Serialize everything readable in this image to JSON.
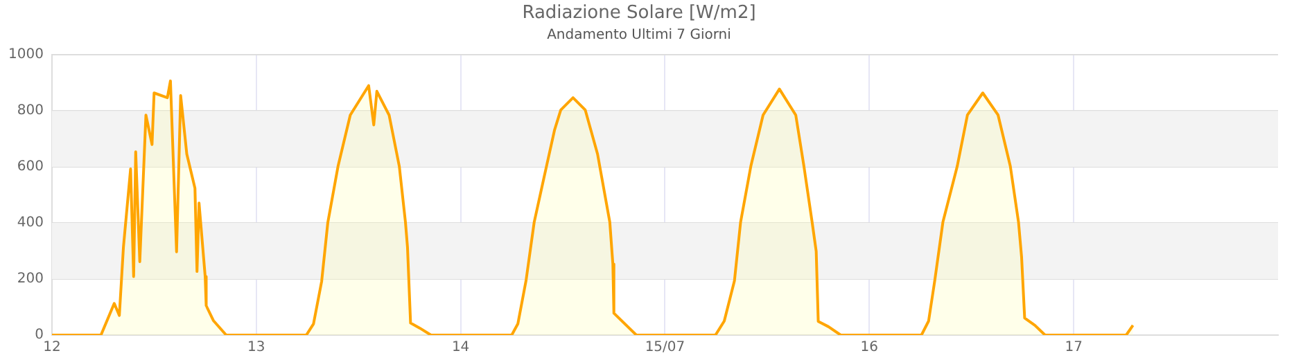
{
  "chart_data": {
    "type": "area",
    "title": "Radiazione Solare [W/m2]",
    "subtitle": "Andamento Ultimi 7 Giorni",
    "series": [
      {
        "color": "#ffa500",
        "x": [
          12,
          12.24,
          12.305,
          12.33,
          12.35,
          12.385,
          12.4,
          12.41,
          12.43,
          12.46,
          12.49,
          12.5,
          12.565,
          12.58,
          12.61,
          12.63,
          12.66,
          12.7,
          12.71,
          12.72,
          12.75,
          12.755,
          12.79,
          12.853,
          13.245,
          13.28,
          13.32,
          13.35,
          13.4,
          13.46,
          13.55,
          13.575,
          13.59,
          13.65,
          13.7,
          13.73,
          13.74,
          13.755,
          13.8,
          13.855,
          14.25,
          14.28,
          14.32,
          14.36,
          14.42,
          14.46,
          14.49,
          14.55,
          14.61,
          14.67,
          14.73,
          14.745,
          14.75,
          14.86,
          15.247,
          15.29,
          15.34,
          15.37,
          15.42,
          15.48,
          15.56,
          15.64,
          15.68,
          15.72,
          15.74,
          15.75,
          15.8,
          15.86,
          16.255,
          16.29,
          16.32,
          16.36,
          16.43,
          16.48,
          16.555,
          16.63,
          16.69,
          16.73,
          16.745,
          16.76,
          16.81,
          16.86,
          17.257,
          17.29
        ],
        "values": [
          0,
          0,
          113,
          70,
          314,
          593,
          209,
          654,
          262,
          785,
          680,
          864,
          847,
          907,
          297,
          855,
          646,
          524,
          227,
          471,
          209,
          105,
          52,
          0,
          0,
          40,
          192,
          401,
          602,
          785,
          890,
          750,
          870,
          785,
          602,
          403,
          314,
          43,
          25,
          0,
          0,
          40,
          194,
          403,
          602,
          733,
          803,
          847,
          803,
          646,
          403,
          253,
          78,
          0,
          0,
          50,
          194,
          403,
          602,
          785,
          878,
          785,
          602,
          403,
          299,
          49,
          30,
          0,
          0,
          50,
          194,
          403,
          602,
          785,
          864,
          785,
          602,
          403,
          279,
          61,
          35,
          0,
          0,
          35
        ]
      }
    ],
    "xlim": [
      12,
      18
    ],
    "xticks": [
      12,
      13,
      14,
      {
        "value": 15,
        "label": "15/07"
      },
      16,
      17
    ],
    "ylim": [
      0,
      1000
    ],
    "yticks": [
      0,
      200,
      400,
      600,
      800,
      1000
    ],
    "bands": [
      {
        "axis": "y",
        "from": 200,
        "to": 400,
        "color": "#f3f3f3"
      },
      {
        "axis": "y",
        "from": 600,
        "to": 800,
        "color": "#f3f3f3"
      }
    ],
    "grid": true,
    "legend": false,
    "marker": "none",
    "line_style": "solid"
  }
}
